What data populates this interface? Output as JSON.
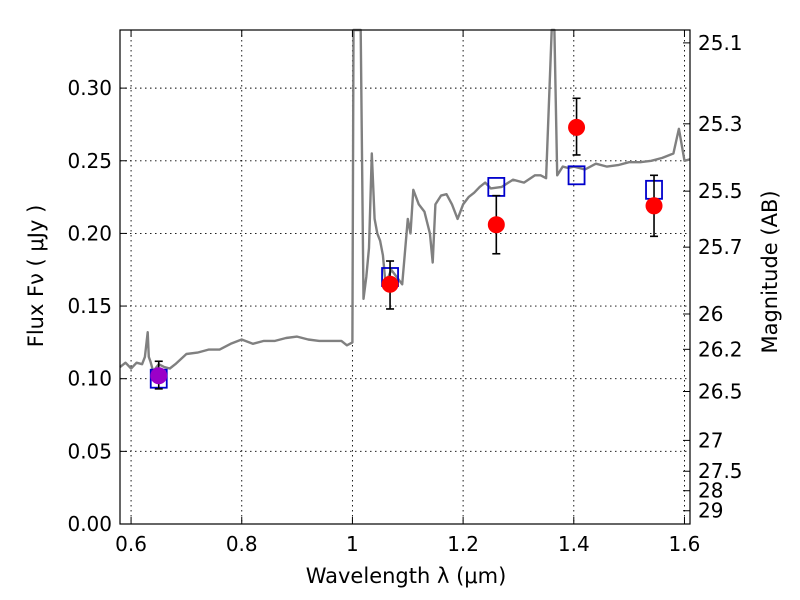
{
  "chart_data": {
    "type": "scatter",
    "title": "",
    "xlabel": "Wavelength  λ (μm)",
    "ylabel": "Flux  Fν  ( μJy )",
    "y2label": "Magnitude (AB)",
    "xlim": [
      0.58,
      1.61
    ],
    "ylim": [
      0.0,
      0.34
    ],
    "grid": true,
    "x_ticks": [
      0.6,
      0.8,
      1.0,
      1.2,
      1.4,
      1.6
    ],
    "x_tick_labels": [
      "0.6",
      "0.8",
      "1",
      "1.2",
      "1.4",
      "1.6"
    ],
    "y_ticks": [
      0.0,
      0.05,
      0.1,
      0.15,
      0.2,
      0.25,
      0.3
    ],
    "y_tick_labels": [
      "0.00",
      "0.05",
      "0.10",
      "0.15",
      "0.20",
      "0.25",
      "0.30"
    ],
    "mag_ticks": [
      25.1,
      25.3,
      25.5,
      25.7,
      26,
      26.2,
      26.5,
      27,
      27.5,
      28,
      29
    ],
    "mag_tick_labels": [
      "25.1",
      "25.3",
      "25.5",
      "25.7",
      "26",
      "26.2",
      "26.5",
      "27",
      "27.5",
      "28",
      "29"
    ],
    "series": [
      {
        "kind": "line",
        "color": "#808080",
        "x": [
          0.58,
          0.59,
          0.6,
          0.61,
          0.62,
          0.625,
          0.63,
          0.632,
          0.635,
          0.64,
          0.65,
          0.66,
          0.67,
          0.68,
          0.7,
          0.72,
          0.74,
          0.76,
          0.78,
          0.8,
          0.82,
          0.84,
          0.86,
          0.88,
          0.9,
          0.92,
          0.94,
          0.96,
          0.98,
          0.99,
          1.0,
          1.002,
          1.005,
          1.01,
          1.015,
          1.02,
          1.025,
          1.03,
          1.035,
          1.04,
          1.045,
          1.05,
          1.055,
          1.06,
          1.07,
          1.08,
          1.09,
          1.1,
          1.105,
          1.11,
          1.12,
          1.13,
          1.14,
          1.145,
          1.15,
          1.16,
          1.17,
          1.18,
          1.19,
          1.2,
          1.21,
          1.22,
          1.23,
          1.24,
          1.25,
          1.27,
          1.29,
          1.31,
          1.33,
          1.34,
          1.35,
          1.36,
          1.365,
          1.37,
          1.38,
          1.39,
          1.4,
          1.42,
          1.44,
          1.46,
          1.48,
          1.5,
          1.52,
          1.54,
          1.56,
          1.58,
          1.59,
          1.6,
          1.61
        ],
        "y": [
          0.108,
          0.111,
          0.107,
          0.111,
          0.11,
          0.115,
          0.132,
          0.115,
          0.112,
          0.105,
          0.11,
          0.108,
          0.107,
          0.11,
          0.117,
          0.118,
          0.12,
          0.12,
          0.124,
          0.127,
          0.124,
          0.126,
          0.126,
          0.128,
          0.129,
          0.127,
          0.126,
          0.126,
          0.126,
          0.123,
          0.125,
          0.34,
          0.34,
          0.34,
          0.34,
          0.155,
          0.17,
          0.19,
          0.255,
          0.21,
          0.2,
          0.195,
          0.185,
          0.165,
          0.175,
          0.17,
          0.165,
          0.21,
          0.2,
          0.23,
          0.22,
          0.215,
          0.2,
          0.18,
          0.22,
          0.226,
          0.227,
          0.22,
          0.21,
          0.22,
          0.225,
          0.228,
          0.232,
          0.235,
          0.231,
          0.232,
          0.237,
          0.235,
          0.24,
          0.24,
          0.238,
          0.34,
          0.34,
          0.24,
          0.246,
          0.245,
          0.246,
          0.244,
          0.248,
          0.246,
          0.247,
          0.249,
          0.249,
          0.25,
          0.252,
          0.255,
          0.272,
          0.25,
          0.251
        ]
      },
      {
        "kind": "markers",
        "marker": "square-open",
        "color": "#0000cc",
        "x": [
          0.65,
          1.068,
          1.26,
          1.405,
          1.545
        ],
        "y": [
          0.1,
          0.17,
          0.232,
          0.24,
          0.23
        ]
      },
      {
        "kind": "errorbar",
        "marker": "circle",
        "color": "#ff0000",
        "x": [
          0.65,
          1.068,
          1.26,
          1.405,
          1.545
        ],
        "y": [
          0.102,
          0.165,
          0.206,
          0.273,
          0.219
        ],
        "yerr_low": [
          0.093,
          0.148,
          0.186,
          0.254,
          0.198
        ],
        "yerr_high": [
          0.112,
          0.181,
          0.226,
          0.293,
          0.24
        ]
      }
    ]
  }
}
